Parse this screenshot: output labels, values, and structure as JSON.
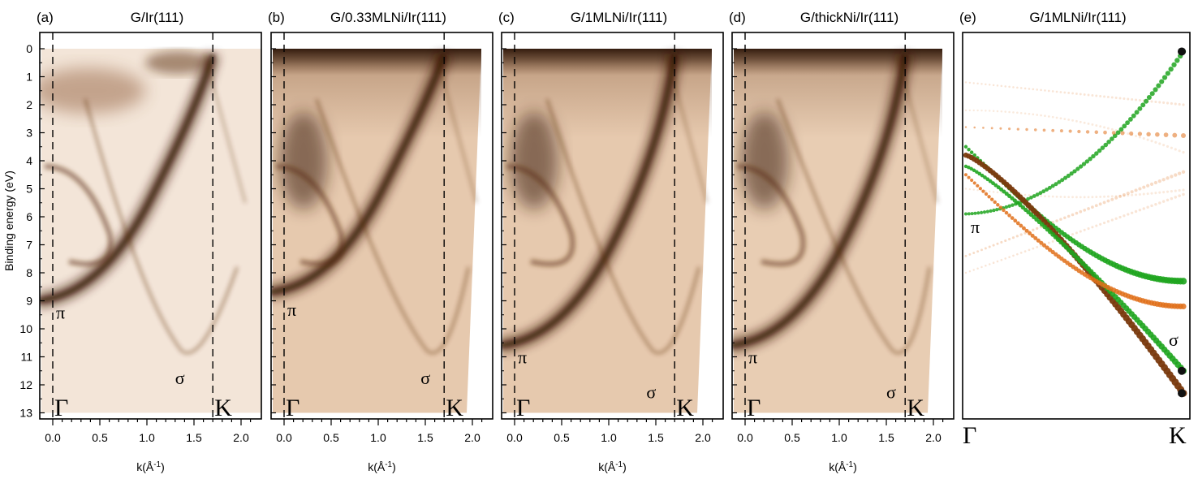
{
  "figure": {
    "y_axis_label": "Binding energy (eV)",
    "x_axis_label_prefix": "k(Å",
    "x_axis_label_sup": "-1",
    "x_axis_label_suffix": ")",
    "y_ticks": [
      "0",
      "1",
      "2",
      "3",
      "4",
      "5",
      "6",
      "7",
      "8",
      "9",
      "10",
      "11",
      "12",
      "13"
    ],
    "x_ticks": [
      "0.0",
      "0.5",
      "1.0",
      "1.5",
      "2.0"
    ]
  },
  "panels": [
    {
      "letter": "(a)",
      "title": "G/Ir(111)",
      "gamma": "Γ",
      "k_point": "K",
      "pi_label": "π",
      "pi_ev": 9.4,
      "sigma_label": "σ",
      "sigma_k": 1.3,
      "sigma_ev": 11.8,
      "k_point_pos": 1.7
    },
    {
      "letter": "(b)",
      "title": "G/0.33MLNi/Ir(111)",
      "gamma": "Γ",
      "k_point": "K",
      "pi_label": "π",
      "pi_ev": 9.3,
      "sigma_label": "σ",
      "sigma_k": 1.45,
      "sigma_ev": 11.8,
      "k_point_pos": 1.7
    },
    {
      "letter": "(c)",
      "title": "G/1MLNi/Ir(111)",
      "gamma": "Γ",
      "k_point": "K",
      "pi_label": "π",
      "pi_ev": 11.0,
      "sigma_label": "σ",
      "sigma_k": 1.4,
      "sigma_ev": 12.3,
      "k_point_pos": 1.7
    },
    {
      "letter": "(d)",
      "title": "G/thickNi/Ir(111)",
      "gamma": "Γ",
      "k_point": "K",
      "pi_label": "π",
      "pi_ev": 11.0,
      "sigma_label": "σ",
      "sigma_k": 1.5,
      "sigma_ev": 12.3,
      "k_point_pos": 1.7
    }
  ],
  "calc_panel": {
    "letter": "(e)",
    "title": "G/1MLNi/Ir(111)",
    "gamma": "Γ",
    "k_point": "K",
    "pi_label": "π",
    "sigma_label": "σ",
    "colors": {
      "green": "#1fa51f",
      "brown": "#7a3a0e",
      "orange": "#e0701a",
      "black": "#111111"
    }
  }
}
